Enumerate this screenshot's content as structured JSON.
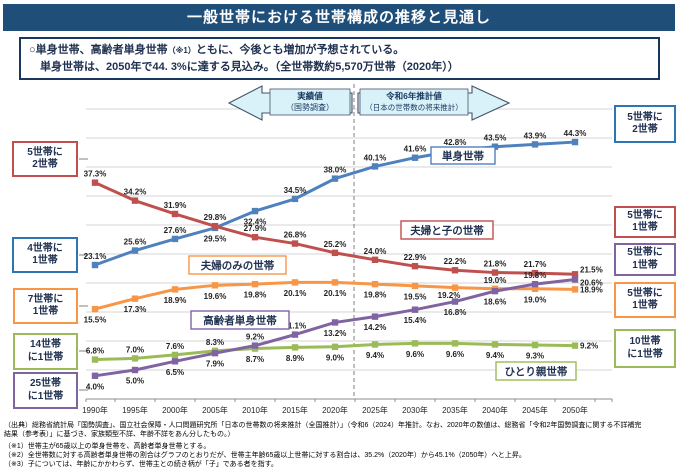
{
  "title": "一般世帯における世帯構成の推移と見通し",
  "headline": {
    "line1_pre": "○単身世帯、高齢者単身世帯",
    "line1_ref": "（※1）",
    "line1_post": "ともに、今後とも増加が予想されている。",
    "line2": "単身世帯は、2050年で44. 3%に達する見込み。（全世帯数約5,570万世帯（2020年））"
  },
  "annotations": {
    "actual": {
      "line1": "実績値",
      "line2": "（国勢調査）"
    },
    "projection": {
      "line1": "令和6年推計値",
      "line2": "（日本の世帯数の将来推計）"
    }
  },
  "chart_data": {
    "type": "line",
    "categories": [
      "1990年",
      "1995年",
      "2000年",
      "2005年",
      "2010年",
      "2015年",
      "2020年",
      "2025年",
      "2030年",
      "2035年",
      "2040年",
      "2045年",
      "2050年"
    ],
    "series": [
      {
        "name": "単身世帯",
        "color": "#4F81BD",
        "values": [
          23.1,
          25.6,
          27.6,
          29.5,
          32.4,
          34.5,
          38.0,
          40.1,
          41.6,
          42.8,
          43.5,
          43.9,
          44.3
        ]
      },
      {
        "name": "夫婦と子の世帯",
        "color": "#C0504D",
        "values": [
          37.3,
          34.2,
          31.9,
          29.8,
          27.9,
          26.8,
          25.2,
          24.0,
          22.9,
          22.2,
          21.8,
          21.7,
          21.5
        ]
      },
      {
        "name": "夫婦のみの世帯",
        "color": "#F79646",
        "values": [
          15.5,
          17.3,
          18.9,
          19.6,
          19.8,
          20.1,
          20.1,
          19.8,
          19.5,
          19.2,
          19.0,
          19.0,
          18.9
        ]
      },
      {
        "name": "高齢者単身世帯",
        "color": "#8064A2",
        "values": [
          4.0,
          5.0,
          6.5,
          7.9,
          9.2,
          11.1,
          13.2,
          14.2,
          15.4,
          16.8,
          18.6,
          19.8,
          20.6
        ]
      },
      {
        "name": "ひとり親世帯",
        "color": "#9BBB59",
        "values": [
          6.8,
          7.0,
          7.6,
          8.3,
          8.7,
          8.9,
          9.0,
          9.4,
          9.6,
          9.6,
          9.4,
          9.3,
          9.2
        ]
      }
    ],
    "unit": "%",
    "ylim": [
      0,
      50
    ],
    "grid": true,
    "divider_between": [
      "2020年",
      "2025年"
    ]
  },
  "left_labels": [
    {
      "line1": "5世帯に",
      "line2": "2世帯",
      "color": "#C0504D"
    },
    {
      "line1": "4世帯に",
      "line2": "1世帯",
      "color": "#2E75B6"
    },
    {
      "line1": "7世帯に",
      "line2": "1世帯",
      "color": "#F79646"
    },
    {
      "line1": "14世帯",
      "line2": "に1世帯",
      "color": "#9BBB59"
    },
    {
      "line1": "25世帯",
      "line2": "に1世帯",
      "color": "#8064A2"
    }
  ],
  "right_labels": [
    {
      "line1": "5世帯に",
      "line2": "2世帯",
      "color": "#2E75B6"
    },
    {
      "line1": "5世帯に",
      "line2": "1世帯",
      "color": "#C0504D"
    },
    {
      "line1": "5世帯に",
      "line2": "1世帯",
      "color": "#8064A2"
    },
    {
      "line1": "5世帯に",
      "line2": "1世帯",
      "color": "#F79646"
    },
    {
      "line1": "10世帯",
      "line2": "に1世帯",
      "color": "#9BBB59"
    }
  ],
  "footnotes": [
    "（出典）総務省統計局「国勢調査」、国立社会保障・人口問題研究所「日本の世帯数の将来推計（全国推計）」（令和6（2024）年推計。なお、2020年の数値は、総務省「令和2年国勢調査に関する不詳補完",
    "結果（参考表）」に基づき、家族類型不詳、年齢不詳をあん分したもの。）",
    "（※1）世帯主が65歳以上の単身世帯を、高齢者単身世帯とする。",
    "（※2）全世帯数に対する高齢者単身世帯の割合はグラフのとおりだが、世帯主年齢65歳以上世帯に対する割合は、35.2%（2020年）から45.1%（2050年）へと上昇。",
    "（※3）子については、年齢にかかわらず、世帯主との続き柄が「子」である者を指す。"
  ]
}
